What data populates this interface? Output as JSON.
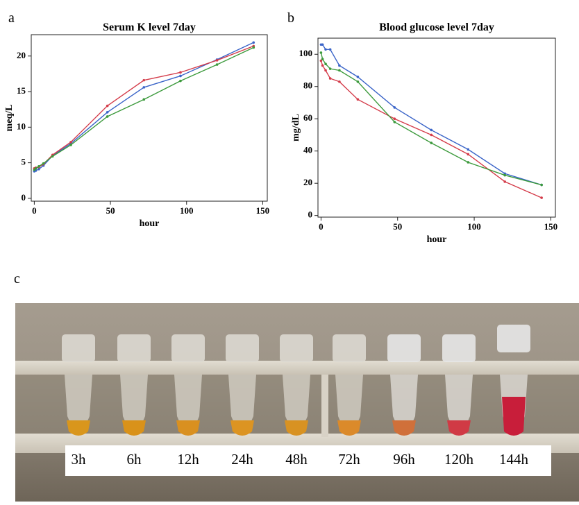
{
  "panel_labels": [
    "a",
    "b",
    "c"
  ],
  "chart_data": [
    {
      "type": "line",
      "title": "Serum K level 7day",
      "x_label": "hour",
      "y_label": "meq/L",
      "x": [
        0,
        1,
        3,
        6,
        12,
        24,
        48,
        72,
        96,
        120,
        144
      ],
      "series": [
        {
          "color": "#3a64c8",
          "values": [
            3.8,
            3.9,
            4.1,
            4.6,
            6.0,
            7.7,
            12.1,
            15.6,
            17.2,
            19.5,
            21.9
          ]
        },
        {
          "color": "#d43c4a",
          "values": [
            4.2,
            4.3,
            4.4,
            4.8,
            6.1,
            7.9,
            13.0,
            16.6,
            17.7,
            19.4,
            21.4
          ]
        },
        {
          "color": "#3c9a3c",
          "values": [
            4.0,
            4.2,
            4.5,
            4.9,
            5.9,
            7.5,
            11.5,
            13.9,
            16.5,
            18.8,
            21.2
          ]
        }
      ],
      "xlim": [
        -2,
        153
      ],
      "xticks": [
        0,
        50,
        100,
        150
      ],
      "ylim": [
        -0.4,
        23
      ],
      "yticks": [
        0,
        5,
        10,
        15,
        20
      ]
    },
    {
      "type": "line",
      "title": "Blood glucose level 7day",
      "x_label": "hour",
      "y_label": "mg/dL",
      "x": [
        0,
        1,
        3,
        6,
        12,
        24,
        48,
        72,
        96,
        120,
        144
      ],
      "series": [
        {
          "color": "#3a64c8",
          "values": [
            106,
            106,
            103,
            103,
            93,
            86,
            67,
            53,
            41,
            26,
            19
          ]
        },
        {
          "color": "#d43c4a",
          "values": [
            96,
            93,
            90,
            85,
            83,
            72,
            60,
            50,
            38,
            21,
            11
          ]
        },
        {
          "color": "#3c9a3c",
          "values": [
            101,
            97,
            94,
            91,
            90,
            83,
            58,
            45,
            33,
            25,
            19
          ]
        }
      ],
      "xlim": [
        -2,
        153
      ],
      "xticks": [
        0,
        50,
        100,
        150
      ],
      "ylim": [
        -1,
        110
      ],
      "yticks": [
        0,
        20,
        40,
        60,
        80,
        100
      ]
    }
  ],
  "photo": {
    "labels": [
      "3h",
      "6h",
      "12h",
      "24h",
      "48h",
      "72h",
      "96h",
      "120h",
      "144h"
    ]
  }
}
